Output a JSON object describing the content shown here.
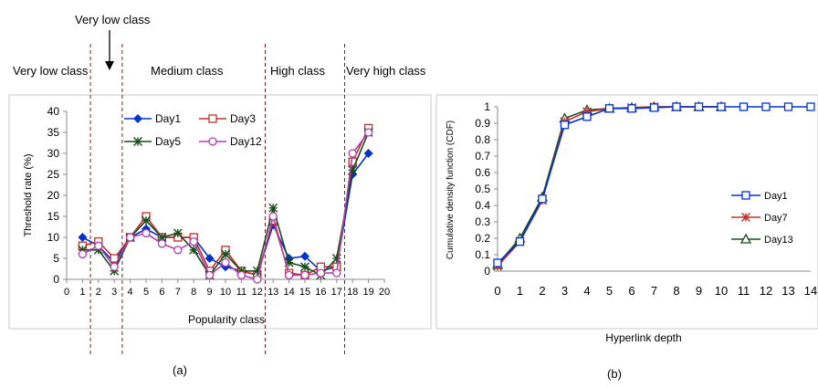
{
  "figure": {
    "panel_labels": [
      "(a)",
      "(b)"
    ],
    "class_labels": [
      "Very low class",
      "Very low class",
      "Medium class",
      "High class",
      "Very high class"
    ],
    "colors": {
      "Day1": "#0033cc",
      "Day3": "#c0302a",
      "Day5": "#1b4d1b",
      "Day12": "#b040b0",
      "Day7": "#c0302a",
      "Day13": "#1b4d1b",
      "divider": "#8b1a1a"
    }
  },
  "chart_data": [
    {
      "type": "line",
      "xlabel": "Popularity class",
      "ylabel": "Threshold rate (%)",
      "xlim": [
        0,
        20
      ],
      "ylim": [
        0,
        40
      ],
      "x_ticks": [
        0,
        1,
        2,
        3,
        4,
        5,
        6,
        7,
        8,
        9,
        10,
        11,
        12,
        13,
        14,
        15,
        16,
        17,
        18,
        19,
        20
      ],
      "y_ticks": [
        0,
        5,
        10,
        15,
        20,
        25,
        30,
        35,
        40
      ],
      "class_boundaries": [
        1.5,
        3.5,
        12.5,
        17.5
      ],
      "legend_position": "top-center",
      "grid": false,
      "x": [
        1,
        2,
        3,
        4,
        5,
        6,
        7,
        8,
        9,
        10,
        11,
        12,
        13,
        14,
        15,
        16,
        17,
        18,
        19
      ],
      "series": [
        {
          "name": "Day1",
          "marker": "diamond",
          "values": [
            10,
            8,
            4,
            10,
            12,
            10,
            10,
            10,
            5,
            3,
            2,
            1,
            13,
            5,
            5.5,
            2,
            3,
            25,
            30
          ]
        },
        {
          "name": "Day3",
          "marker": "square",
          "values": [
            8,
            9,
            5,
            10,
            15,
            10,
            10,
            10,
            2,
            7,
            2,
            1,
            14,
            1.5,
            1,
            3,
            3,
            28,
            36
          ]
        },
        {
          "name": "Day5",
          "marker": "star",
          "values": [
            7,
            7,
            2,
            10,
            14,
            10,
            11,
            7,
            1,
            6,
            2,
            2,
            17,
            4,
            3,
            1,
            5,
            26,
            35
          ]
        },
        {
          "name": "Day12",
          "marker": "circle",
          "values": [
            6,
            8,
            3,
            10,
            11,
            8.5,
            7,
            9,
            1,
            4,
            1,
            0,
            15,
            1,
            1,
            1.5,
            1.5,
            30,
            35
          ]
        }
      ],
      "annotation": "Very low class"
    },
    {
      "type": "line",
      "xlabel": "Hyperlink depth",
      "ylabel": "Cumulative density function (CDF)",
      "xlim": [
        0,
        14
      ],
      "ylim": [
        0,
        1
      ],
      "x_ticks": [
        0,
        1,
        2,
        3,
        4,
        5,
        6,
        7,
        8,
        9,
        10,
        11,
        12,
        13,
        14
      ],
      "y_ticks": [
        0,
        0.1,
        0.2,
        0.3,
        0.4,
        0.5,
        0.6,
        0.7,
        0.8,
        0.9,
        1
      ],
      "legend_position": "right",
      "grid": false,
      "series": [
        {
          "name": "Day1",
          "marker": "square",
          "x": [
            0,
            1,
            2,
            3,
            4,
            5,
            6,
            7,
            8,
            9,
            10,
            11,
            12,
            13,
            14
          ],
          "values": [
            0.05,
            0.18,
            0.44,
            0.89,
            0.94,
            0.99,
            0.99,
            0.995,
            1.0,
            1.0,
            1.0,
            1.0,
            1.0,
            1.0,
            1.0
          ]
        },
        {
          "name": "Day7",
          "marker": "star",
          "x": [
            0,
            1,
            2,
            3,
            4,
            5,
            6,
            7,
            8,
            9,
            10
          ],
          "values": [
            0.03,
            0.18,
            0.43,
            0.91,
            0.97,
            0.99,
            0.995,
            1.0,
            1.0,
            1.0,
            1.0
          ]
        },
        {
          "name": "Day13",
          "marker": "triangle",
          "x": [
            0,
            1,
            2,
            3,
            4,
            5,
            6,
            7,
            8,
            9,
            10
          ],
          "values": [
            0.04,
            0.2,
            0.45,
            0.93,
            0.98,
            0.99,
            0.995,
            1.0,
            1.0,
            1.0,
            1.0
          ]
        }
      ]
    }
  ]
}
